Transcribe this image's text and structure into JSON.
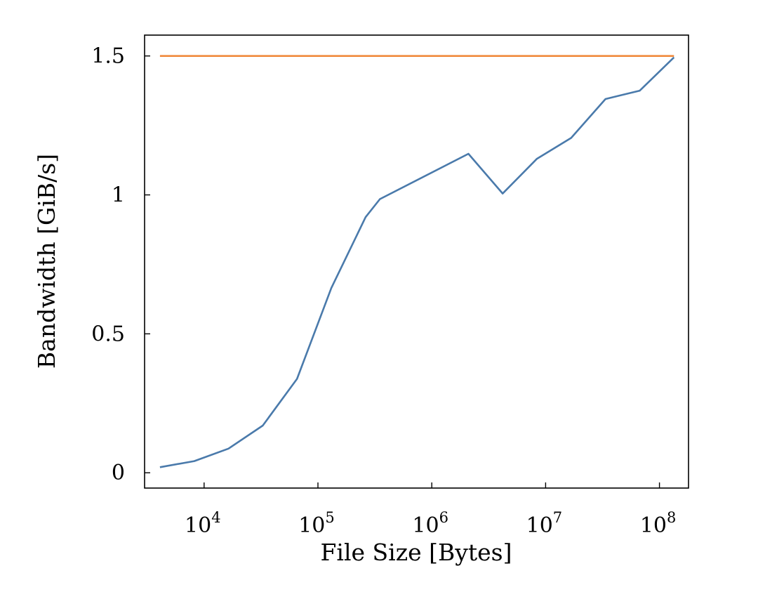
{
  "chart_data": {
    "type": "line",
    "title": "",
    "xlabel": "File Size [Bytes]",
    "ylabel": "Bandwidth [GiB/s]",
    "x_scale": "log",
    "xlim": [
      3000,
      180000000
    ],
    "ylim": [
      -0.055,
      1.575
    ],
    "x_ticks": [
      {
        "value": 10000,
        "base": "10",
        "exp": "4"
      },
      {
        "value": 100000,
        "base": "10",
        "exp": "5"
      },
      {
        "value": 1000000,
        "base": "10",
        "exp": "6"
      },
      {
        "value": 10000000,
        "base": "10",
        "exp": "7"
      },
      {
        "value": 100000000,
        "base": "10",
        "exp": "8"
      }
    ],
    "y_ticks": [
      {
        "value": 0,
        "label": "0"
      },
      {
        "value": 0.5,
        "label": "0.5"
      },
      {
        "value": 1,
        "label": "1"
      },
      {
        "value": 1.5,
        "label": "1.5"
      }
    ],
    "grid": false,
    "legend": "none",
    "series": [
      {
        "color": "#4a7aab",
        "x": [
          4096,
          8192,
          16384,
          32768,
          65536,
          131072,
          262144,
          350000,
          2097152,
          4194304,
          8388608,
          16777216,
          33554432,
          67108864,
          134217728
        ],
        "y": [
          0.02,
          0.042,
          0.087,
          0.17,
          0.338,
          0.665,
          0.92,
          0.985,
          1.148,
          1.005,
          1.13,
          1.205,
          1.345,
          1.375,
          1.495
        ]
      },
      {
        "color": "#f08a3c",
        "x": [
          4096,
          134217728
        ],
        "y": [
          1.5,
          1.5
        ]
      }
    ]
  }
}
